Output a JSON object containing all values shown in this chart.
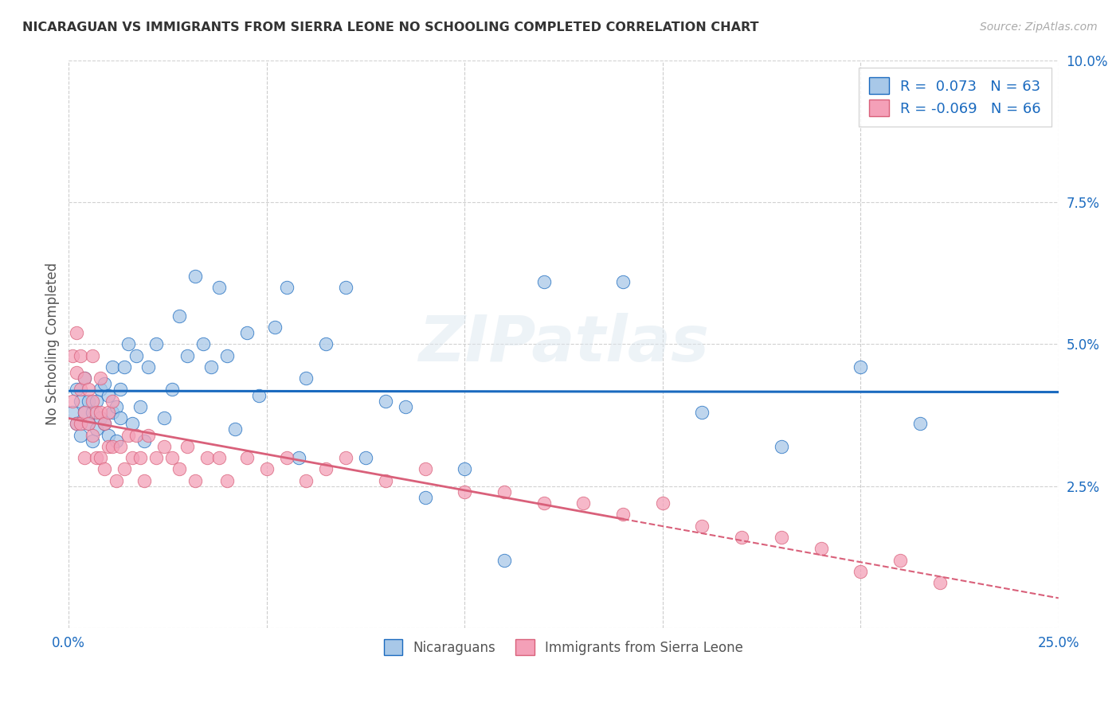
{
  "title": "NICARAGUAN VS IMMIGRANTS FROM SIERRA LEONE NO SCHOOLING COMPLETED CORRELATION CHART",
  "source": "Source: ZipAtlas.com",
  "ylabel": "No Schooling Completed",
  "xlim": [
    0.0,
    0.25
  ],
  "ylim": [
    0.0,
    0.1
  ],
  "x_ticks": [
    0.0,
    0.05,
    0.1,
    0.15,
    0.2,
    0.25
  ],
  "y_ticks": [
    0.0,
    0.025,
    0.05,
    0.075,
    0.1
  ],
  "x_tick_labels": [
    "0.0%",
    "",
    "",
    "",
    "",
    "25.0%"
  ],
  "y_tick_labels": [
    "",
    "2.5%",
    "5.0%",
    "7.5%",
    "10.0%"
  ],
  "blue_R": 0.073,
  "blue_N": 63,
  "pink_R": -0.069,
  "pink_N": 66,
  "blue_color": "#a8c8e8",
  "pink_color": "#f4a0b8",
  "blue_line_color": "#1a6abf",
  "pink_line_color": "#d9607a",
  "watermark": "ZIPatlas",
  "legend_label_blue": "Nicaraguans",
  "legend_label_pink": "Immigrants from Sierra Leone",
  "blue_points_x": [
    0.001,
    0.002,
    0.002,
    0.003,
    0.003,
    0.004,
    0.004,
    0.005,
    0.005,
    0.006,
    0.006,
    0.007,
    0.007,
    0.008,
    0.008,
    0.009,
    0.009,
    0.01,
    0.01,
    0.011,
    0.011,
    0.012,
    0.012,
    0.013,
    0.013,
    0.014,
    0.015,
    0.016,
    0.017,
    0.018,
    0.019,
    0.02,
    0.022,
    0.024,
    0.026,
    0.028,
    0.03,
    0.032,
    0.034,
    0.036,
    0.038,
    0.04,
    0.042,
    0.045,
    0.048,
    0.052,
    0.055,
    0.058,
    0.06,
    0.065,
    0.07,
    0.075,
    0.08,
    0.085,
    0.09,
    0.1,
    0.11,
    0.12,
    0.14,
    0.16,
    0.18,
    0.2,
    0.215
  ],
  "blue_points_y": [
    0.038,
    0.042,
    0.036,
    0.04,
    0.034,
    0.038,
    0.044,
    0.036,
    0.04,
    0.033,
    0.038,
    0.04,
    0.035,
    0.042,
    0.037,
    0.036,
    0.043,
    0.034,
    0.041,
    0.038,
    0.046,
    0.033,
    0.039,
    0.037,
    0.042,
    0.046,
    0.05,
    0.036,
    0.048,
    0.039,
    0.033,
    0.046,
    0.05,
    0.037,
    0.042,
    0.055,
    0.048,
    0.062,
    0.05,
    0.046,
    0.06,
    0.048,
    0.035,
    0.052,
    0.041,
    0.053,
    0.06,
    0.03,
    0.044,
    0.05,
    0.06,
    0.03,
    0.04,
    0.039,
    0.023,
    0.028,
    0.012,
    0.061,
    0.061,
    0.038,
    0.032,
    0.046,
    0.036
  ],
  "pink_points_x": [
    0.001,
    0.001,
    0.002,
    0.002,
    0.002,
    0.003,
    0.003,
    0.003,
    0.004,
    0.004,
    0.004,
    0.005,
    0.005,
    0.006,
    0.006,
    0.006,
    0.007,
    0.007,
    0.008,
    0.008,
    0.008,
    0.009,
    0.009,
    0.01,
    0.01,
    0.011,
    0.011,
    0.012,
    0.013,
    0.014,
    0.015,
    0.016,
    0.017,
    0.018,
    0.019,
    0.02,
    0.022,
    0.024,
    0.026,
    0.028,
    0.03,
    0.032,
    0.035,
    0.038,
    0.04,
    0.045,
    0.05,
    0.055,
    0.06,
    0.065,
    0.07,
    0.08,
    0.09,
    0.1,
    0.11,
    0.12,
    0.13,
    0.14,
    0.15,
    0.16,
    0.17,
    0.18,
    0.19,
    0.2,
    0.21,
    0.22
  ],
  "pink_points_y": [
    0.048,
    0.04,
    0.052,
    0.045,
    0.036,
    0.048,
    0.042,
    0.036,
    0.044,
    0.038,
    0.03,
    0.042,
    0.036,
    0.048,
    0.04,
    0.034,
    0.038,
    0.03,
    0.044,
    0.038,
    0.03,
    0.036,
    0.028,
    0.038,
    0.032,
    0.04,
    0.032,
    0.026,
    0.032,
    0.028,
    0.034,
    0.03,
    0.034,
    0.03,
    0.026,
    0.034,
    0.03,
    0.032,
    0.03,
    0.028,
    0.032,
    0.026,
    0.03,
    0.03,
    0.026,
    0.03,
    0.028,
    0.03,
    0.026,
    0.028,
    0.03,
    0.026,
    0.028,
    0.024,
    0.024,
    0.022,
    0.022,
    0.02,
    0.022,
    0.018,
    0.016,
    0.016,
    0.014,
    0.01,
    0.012,
    0.008
  ]
}
